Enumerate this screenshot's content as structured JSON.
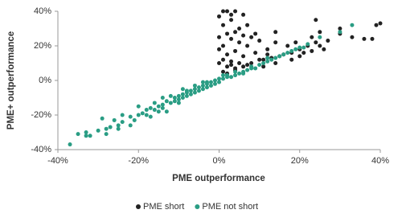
{
  "chart_data": {
    "type": "scatter",
    "xlabel": "PME outperformance",
    "ylabel": "PME+ outperformance",
    "xlim": [
      -40,
      40
    ],
    "ylim": [
      -40,
      40
    ],
    "xticks": [
      {
        "value": -40,
        "label": "-40%"
      },
      {
        "value": -20,
        "label": "-20%"
      },
      {
        "value": 0,
        "label": "0%"
      },
      {
        "value": 20,
        "label": "20%"
      },
      {
        "value": 40,
        "label": "40%"
      }
    ],
    "yticks": [
      {
        "value": -40,
        "label": "-40%"
      },
      {
        "value": -20,
        "label": "-20%"
      },
      {
        "value": 0,
        "label": "0%"
      },
      {
        "value": 20,
        "label": "20%"
      },
      {
        "value": 40,
        "label": "40%"
      }
    ],
    "legend": "bottom",
    "series": [
      {
        "name": "PME short",
        "color": "#222222",
        "x": [
          1,
          2,
          3,
          0,
          3,
          1,
          5,
          4,
          2,
          6,
          8,
          0,
          3,
          10,
          5,
          1,
          7,
          12,
          0,
          4,
          9,
          2,
          6,
          15,
          1,
          3,
          8,
          5,
          0,
          2,
          4,
          11,
          13,
          16,
          18,
          20,
          22,
          24,
          25,
          26,
          23,
          21,
          24,
          23,
          25,
          17,
          19,
          14,
          14,
          9,
          7,
          10,
          6,
          3,
          1,
          2,
          4,
          7,
          30,
          33,
          36,
          38,
          39,
          40,
          30,
          27,
          11,
          14,
          12,
          18,
          20,
          4,
          6
        ],
        "values": [
          40,
          40,
          38,
          37,
          35,
          32,
          30,
          28,
          27,
          26,
          25,
          25,
          24,
          23,
          22,
          20,
          20,
          18,
          18,
          17,
          16,
          15,
          14,
          14,
          12,
          11,
          10,
          10,
          10,
          8,
          7,
          12,
          13,
          15,
          16,
          18,
          20,
          22,
          20,
          18,
          17,
          16,
          35,
          25,
          28,
          20,
          22,
          22,
          28,
          27,
          32,
          12,
          8,
          9,
          5,
          4,
          6,
          9,
          27,
          25,
          24,
          24,
          32,
          33,
          30,
          23,
          8,
          10,
          15,
          12,
          14,
          40,
          38
        ]
      },
      {
        "name": "PME not short",
        "color": "#2a9d84",
        "x": [
          -37,
          -33,
          -32,
          -30,
          -28,
          -27,
          -25,
          -24,
          -22,
          -21,
          -20,
          -19,
          -18,
          -18,
          -17,
          -16,
          -15,
          -14,
          -14,
          -13,
          -12,
          -11,
          -11,
          -10,
          -10,
          -9,
          -9,
          -8,
          -8,
          -7,
          -7,
          -6,
          -6,
          -5,
          -5,
          -4,
          -4,
          -3,
          -3,
          -2,
          -2,
          -1,
          -1,
          0,
          0,
          1,
          2,
          3,
          4,
          5,
          6,
          7,
          8,
          9,
          10,
          11,
          12,
          13,
          14,
          15,
          16,
          17,
          18,
          19,
          20,
          21,
          22,
          -29,
          -14,
          -20,
          -24,
          -28,
          -33,
          25,
          30,
          33,
          -26,
          -22,
          -16,
          -12,
          -8,
          -6,
          -4,
          -17,
          -15,
          -10,
          -9,
          -3,
          2,
          4,
          1,
          6,
          8,
          12,
          -35,
          -13,
          -25
        ],
        "values": [
          -37,
          -30,
          -32,
          -29,
          -28,
          -27,
          -26,
          -24,
          -21,
          -23,
          -20,
          -19,
          -17,
          -20,
          -16,
          -17,
          -15,
          -14,
          -16,
          -12,
          -13,
          -10,
          -12,
          -9,
          -11,
          -8,
          -10,
          -7,
          -9,
          -6,
          -8,
          -5,
          -7,
          -4,
          -6,
          -3,
          -5,
          -2,
          -4,
          -1,
          -3,
          0,
          -2,
          1,
          -1,
          1,
          2,
          2,
          3,
          4,
          5,
          6,
          7,
          7,
          9,
          10,
          11,
          12,
          13,
          14,
          15,
          16,
          17,
          18,
          19,
          19,
          21,
          -22,
          -10,
          -15,
          -20,
          -31,
          -32,
          25,
          28,
          32,
          -23,
          -26,
          -13,
          -9,
          -6,
          -3,
          -1,
          -21,
          -18,
          -13,
          -5,
          -1,
          3,
          5,
          3,
          4,
          8,
          13,
          -31,
          -18,
          -28
        ]
      }
    ]
  }
}
